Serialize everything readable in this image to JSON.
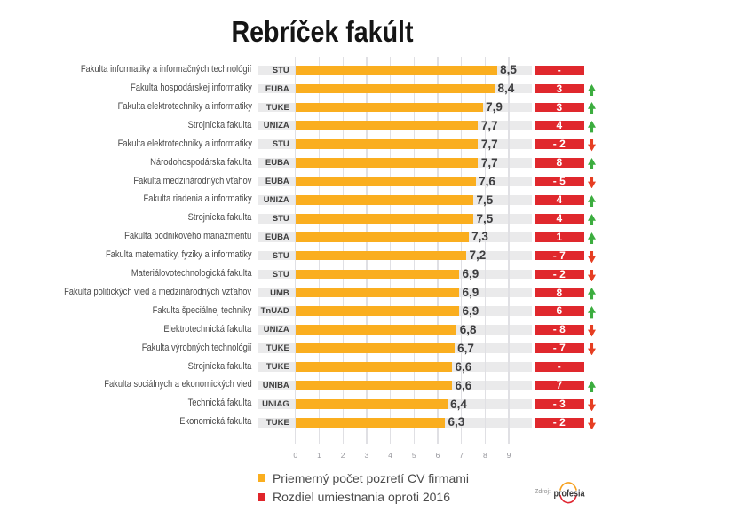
{
  "title": "Rebríček fakúlt",
  "legend": [
    {
      "label": "Priemerný počet pozretí CV firmami",
      "color": "#faae1f"
    },
    {
      "label": "Rozdiel umiestnania oproti 2016",
      "color": "#e0252a"
    }
  ],
  "source": {
    "prefix": "Zdroj:",
    "brand": "profesia"
  },
  "colors": {
    "bar_orange": "#faae1f",
    "badge_red": "#e0282d",
    "arrow_up_green": "#3cad3f",
    "arrow_down_red": "#e63e22",
    "track_gray": "#eaeaeb",
    "gridline": "#e0e0e4",
    "label_text": "#4a4a4a",
    "value_text": "#3d3d3f",
    "badge_text_on_red": "#ffffff"
  },
  "chart_data": {
    "type": "bar",
    "orientation": "horizontal",
    "title": "Rebríček fakúlt",
    "xlabel": "",
    "ylabel": "",
    "xlim": [
      0,
      10
    ],
    "x_ticks": [
      0,
      1,
      2,
      3,
      4,
      5,
      6,
      7,
      8,
      9
    ],
    "grid": true,
    "legend_position": "bottom",
    "series_name": "Priemerný počet pozretí CV firmami",
    "change_series_name": "Rozdiel umiestnania oproti 2016",
    "rows": [
      {
        "faculty": "Fakulta informatiky a informačných technológií",
        "university": "STU",
        "value": 8.5,
        "value_label": "8,5",
        "change": "-",
        "trend": "none"
      },
      {
        "faculty": "Fakulta hospodárskej informatiky",
        "university": "EUBA",
        "value": 8.4,
        "value_label": "8,4",
        "change": "3",
        "trend": "up"
      },
      {
        "faculty": "Fakulta elektrotechniky a informatiky",
        "university": "TUKE",
        "value": 7.9,
        "value_label": "7,9",
        "change": "3",
        "trend": "up"
      },
      {
        "faculty": "Strojnícka fakulta",
        "university": "UNIZA",
        "value": 7.7,
        "value_label": "7,7",
        "change": "4",
        "trend": "up"
      },
      {
        "faculty": "Fakulta elektrotechniky a informatiky",
        "university": "STU",
        "value": 7.7,
        "value_label": "7,7",
        "change": "- 2",
        "trend": "down"
      },
      {
        "faculty": "Národohospodárska fakulta",
        "university": "EUBA",
        "value": 7.7,
        "value_label": "7,7",
        "change": "8",
        "trend": "up"
      },
      {
        "faculty": "Fakulta medzinárodných vťahov",
        "university": "EUBA",
        "value": 7.6,
        "value_label": "7,6",
        "change": "- 5",
        "trend": "down"
      },
      {
        "faculty": "Fakulta riadenia a informatiky",
        "university": "UNIZA",
        "value": 7.5,
        "value_label": "7,5",
        "change": "4",
        "trend": "up"
      },
      {
        "faculty": "Strojnícka fakulta",
        "university": "STU",
        "value": 7.5,
        "value_label": "7,5",
        "change": "4",
        "trend": "up"
      },
      {
        "faculty": "Fakulta podnikového manažmentu",
        "university": "EUBA",
        "value": 7.3,
        "value_label": "7,3",
        "change": "1",
        "trend": "up"
      },
      {
        "faculty": "Fakulta matematiky, fyziky a informatiky",
        "university": "STU",
        "value": 7.2,
        "value_label": "7,2",
        "change": "- 7",
        "trend": "down"
      },
      {
        "faculty": "Materiálovotechnologická fakulta",
        "university": "STU",
        "value": 6.9,
        "value_label": "6,9",
        "change": "- 2",
        "trend": "down"
      },
      {
        "faculty": "Fakulta politických vied a medzinárodných vzťahov",
        "university": "UMB",
        "value": 6.9,
        "value_label": "6,9",
        "change": "8",
        "trend": "up"
      },
      {
        "faculty": "Fakulta špeciálnej techniky",
        "university": "TnUAD",
        "value": 6.9,
        "value_label": "6,9",
        "change": "6",
        "trend": "up"
      },
      {
        "faculty": "Elektrotechnická fakulta",
        "university": "UNIZA",
        "value": 6.8,
        "value_label": "6,8",
        "change": "- 8",
        "trend": "down"
      },
      {
        "faculty": "Fakulta výrobných technológií",
        "university": "TUKE",
        "value": 6.7,
        "value_label": "6,7",
        "change": "- 7",
        "trend": "down"
      },
      {
        "faculty": "Strojnícka fakulta",
        "university": "TUKE",
        "value": 6.6,
        "value_label": "6,6",
        "change": "-",
        "trend": "none"
      },
      {
        "faculty": "Fakulta sociálnych a ekonomických vied",
        "university": "UNIBA",
        "value": 6.6,
        "value_label": "6,6",
        "change": "7",
        "trend": "up"
      },
      {
        "faculty": "Technická fakulta",
        "university": "UNIAG",
        "value": 6.4,
        "value_label": "6,4",
        "change": "- 3",
        "trend": "down"
      },
      {
        "faculty": "Ekonomická fakulta",
        "university": "TUKE",
        "value": 6.3,
        "value_label": "6,3",
        "change": "- 2",
        "trend": "down"
      }
    ]
  }
}
